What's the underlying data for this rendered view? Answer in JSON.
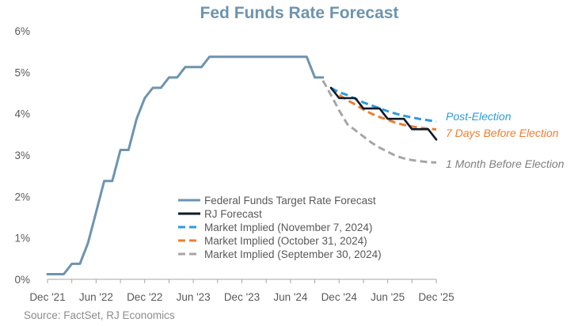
{
  "chart_data": {
    "type": "line",
    "title": "Fed Funds Rate Forecast",
    "source": "Source: FactSet, RJ Economics",
    "x_ticks": [
      {
        "date": "2021-12",
        "label": "Dec '21"
      },
      {
        "date": "2022-06",
        "label": "Jun '22"
      },
      {
        "date": "2022-12",
        "label": "Dec '22"
      },
      {
        "date": "2023-06",
        "label": "Jun '23"
      },
      {
        "date": "2023-12",
        "label": "Dec '23"
      },
      {
        "date": "2024-06",
        "label": "Jun '24"
      },
      {
        "date": "2024-12",
        "label": "Dec '24"
      },
      {
        "date": "2025-06",
        "label": "Jun '25"
      },
      {
        "date": "2025-12",
        "label": "Dec '25"
      }
    ],
    "xlim": [
      "2021-12",
      "2025-12"
    ],
    "ylim": [
      0,
      6
    ],
    "y_ticks": [
      "0%",
      "1%",
      "2%",
      "3%",
      "4%",
      "5%",
      "6%"
    ],
    "y_tick_values": [
      0,
      1,
      2,
      3,
      4,
      5,
      6
    ],
    "series": [
      {
        "name": "Federal Funds Target Rate Forecast",
        "color": "#6d94b0",
        "dash": "solid",
        "points": [
          [
            "2021-12",
            0.125
          ],
          [
            "2022-01",
            0.125
          ],
          [
            "2022-02",
            0.125
          ],
          [
            "2022-03",
            0.375
          ],
          [
            "2022-04",
            0.375
          ],
          [
            "2022-05",
            0.875
          ],
          [
            "2022-06",
            1.625
          ],
          [
            "2022-07",
            2.375
          ],
          [
            "2022-08",
            2.375
          ],
          [
            "2022-09",
            3.125
          ],
          [
            "2022-10",
            3.125
          ],
          [
            "2022-11",
            3.875
          ],
          [
            "2022-12",
            4.375
          ],
          [
            "2023-01",
            4.625
          ],
          [
            "2023-02",
            4.625
          ],
          [
            "2023-03",
            4.875
          ],
          [
            "2023-04",
            4.875
          ],
          [
            "2023-05",
            5.125
          ],
          [
            "2023-06",
            5.125
          ],
          [
            "2023-07",
            5.125
          ],
          [
            "2023-08",
            5.375
          ],
          [
            "2023-09",
            5.375
          ],
          [
            "2023-10",
            5.375
          ],
          [
            "2023-11",
            5.375
          ],
          [
            "2023-12",
            5.375
          ],
          [
            "2024-01",
            5.375
          ],
          [
            "2024-02",
            5.375
          ],
          [
            "2024-03",
            5.375
          ],
          [
            "2024-04",
            5.375
          ],
          [
            "2024-05",
            5.375
          ],
          [
            "2024-06",
            5.375
          ],
          [
            "2024-07",
            5.375
          ],
          [
            "2024-08",
            5.375
          ],
          [
            "2024-09",
            4.875
          ],
          [
            "2024-10",
            4.875
          ]
        ]
      },
      {
        "name": "RJ Forecast",
        "color": "#0d1b2a",
        "dash": "solid",
        "points": [
          [
            "2024-11",
            4.625
          ],
          [
            "2024-12",
            4.375
          ],
          [
            "2025-01",
            4.375
          ],
          [
            "2025-02",
            4.375
          ],
          [
            "2025-03",
            4.125
          ],
          [
            "2025-04",
            4.125
          ],
          [
            "2025-05",
            4.125
          ],
          [
            "2025-06",
            3.875
          ],
          [
            "2025-07",
            3.875
          ],
          [
            "2025-08",
            3.875
          ],
          [
            "2025-09",
            3.625
          ],
          [
            "2025-10",
            3.625
          ],
          [
            "2025-11",
            3.625
          ],
          [
            "2025-12",
            3.375
          ]
        ]
      },
      {
        "name": "Market Implied (November 7, 2024)",
        "color": "#2b9be0",
        "dash": "dashed",
        "points": [
          [
            "2024-11",
            4.62
          ],
          [
            "2024-12",
            4.52
          ],
          [
            "2025-01",
            4.45
          ],
          [
            "2025-02",
            4.36
          ],
          [
            "2025-03",
            4.27
          ],
          [
            "2025-04",
            4.2
          ],
          [
            "2025-05",
            4.13
          ],
          [
            "2025-06",
            4.06
          ],
          [
            "2025-07",
            4.0
          ],
          [
            "2025-08",
            3.95
          ],
          [
            "2025-09",
            3.91
          ],
          [
            "2025-10",
            3.87
          ],
          [
            "2025-11",
            3.84
          ],
          [
            "2025-12",
            3.81
          ]
        ]
      },
      {
        "name": "Market Implied (October 31, 2024)",
        "color": "#ed7d31",
        "dash": "dashed",
        "points": [
          [
            "2024-11",
            4.62
          ],
          [
            "2024-12",
            4.45
          ],
          [
            "2025-01",
            4.33
          ],
          [
            "2025-02",
            4.22
          ],
          [
            "2025-03",
            4.1
          ],
          [
            "2025-04",
            4.0
          ],
          [
            "2025-05",
            3.92
          ],
          [
            "2025-06",
            3.85
          ],
          [
            "2025-07",
            3.78
          ],
          [
            "2025-08",
            3.73
          ],
          [
            "2025-09",
            3.69
          ],
          [
            "2025-10",
            3.66
          ],
          [
            "2025-11",
            3.64
          ],
          [
            "2025-12",
            3.62
          ]
        ]
      },
      {
        "name": "Market Implied (September 30, 2024)",
        "color": "#a6a6a6",
        "dash": "dashed",
        "points": [
          [
            "2024-10",
            4.8
          ],
          [
            "2024-11",
            4.45
          ],
          [
            "2024-12",
            4.08
          ],
          [
            "2025-01",
            3.75
          ],
          [
            "2025-02",
            3.6
          ],
          [
            "2025-03",
            3.45
          ],
          [
            "2025-04",
            3.3
          ],
          [
            "2025-05",
            3.18
          ],
          [
            "2025-06",
            3.08
          ],
          [
            "2025-07",
            2.98
          ],
          [
            "2025-08",
            2.92
          ],
          [
            "2025-09",
            2.88
          ],
          [
            "2025-10",
            2.85
          ],
          [
            "2025-11",
            2.83
          ],
          [
            "2025-12",
            2.82
          ]
        ]
      }
    ],
    "annotations": [
      {
        "text": "Post-Election",
        "color": "#2b9be0",
        "series": 2
      },
      {
        "text": "7 Days Before Election",
        "color": "#ed7d31",
        "series": 3
      },
      {
        "text": "1 Month Before Election",
        "color": "#7f7f7f",
        "series": 4
      }
    ],
    "legend": "center-left"
  }
}
